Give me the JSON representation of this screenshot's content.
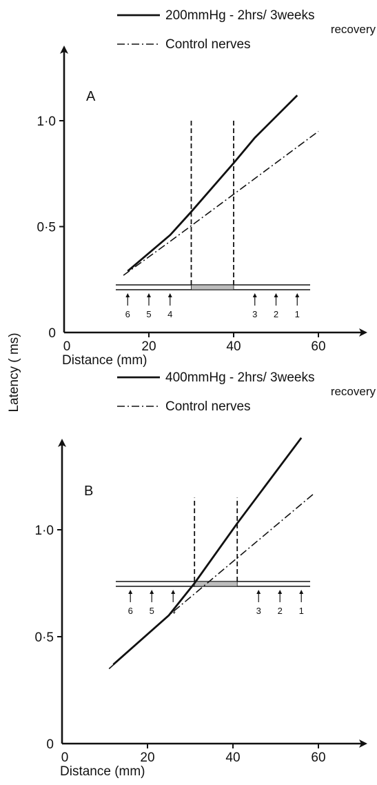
{
  "y_axis_label": "Latency ( ms)",
  "chart_data": [
    {
      "panel": "A",
      "type": "line",
      "xlabel": "Distance (mm)",
      "xlim": [
        0,
        70
      ],
      "ylim": [
        0,
        1.2
      ],
      "x_ticks": [
        0,
        20,
        40,
        60
      ],
      "y_ticks": [
        0,
        0.5,
        1.0
      ],
      "x_tick_labels": [
        "0",
        "20",
        "40",
        "60"
      ],
      "y_tick_labels": [
        "0",
        "0·5",
        "1·0"
      ],
      "legend": [
        {
          "style": "solid",
          "label": "200mmHg - 2hrs/ 3weeks",
          "sub": "recovery"
        },
        {
          "style": "dash-dot",
          "label": "Control nerves",
          "sub": ""
        }
      ],
      "series": [
        {
          "name": "200mmHg - 2hrs/ 3weeks recovery",
          "style": "solid",
          "x": [
            15,
            25,
            30,
            40,
            45,
            55
          ],
          "y": [
            0.29,
            0.46,
            0.57,
            0.8,
            0.92,
            1.12
          ]
        },
        {
          "name": "Control nerves",
          "style": "dash-dot",
          "x": [
            14,
            25,
            60
          ],
          "y": [
            0.27,
            0.43,
            0.95
          ]
        }
      ],
      "compression_zone": [
        30,
        40
      ],
      "electrodes": [
        {
          "label": "6",
          "x": 15
        },
        {
          "label": "5",
          "x": 20
        },
        {
          "label": "4",
          "x": 25
        },
        {
          "label": "3",
          "x": 45
        },
        {
          "label": "2",
          "x": 50
        },
        {
          "label": "1",
          "x": 55
        }
      ]
    },
    {
      "panel": "B",
      "type": "line",
      "xlabel": "Distance (mm)",
      "xlim": [
        0,
        70
      ],
      "ylim": [
        0,
        1.55
      ],
      "x_ticks": [
        0,
        20,
        40,
        60
      ],
      "y_ticks": [
        0,
        0.5,
        1.0
      ],
      "x_tick_labels": [
        "0",
        "20",
        "40",
        "60"
      ],
      "y_tick_labels": [
        "0",
        "0·5",
        "1·0"
      ],
      "legend": [
        {
          "style": "solid",
          "label": "400mmHg - 2hrs/ 3weeks",
          "sub": "recovery"
        },
        {
          "style": "dash-dot",
          "label": "Control nerves",
          "sub": ""
        }
      ],
      "series": [
        {
          "name": "400mmHg - 2hrs/ 3weeks recovery",
          "style": "solid",
          "x": [
            12,
            25,
            31,
            41,
            56
          ],
          "y": [
            0.37,
            0.6,
            0.75,
            1.03,
            1.43
          ]
        },
        {
          "name": "Control nerves",
          "style": "dash-dot",
          "x": [
            11,
            25,
            59
          ],
          "y": [
            0.35,
            0.6,
            1.17
          ]
        }
      ],
      "compression_zone": [
        31,
        41
      ],
      "electrodes": [
        {
          "label": "6",
          "x": 16
        },
        {
          "label": "5",
          "x": 21
        },
        {
          "label": "4",
          "x": 26
        },
        {
          "label": "3",
          "x": 46
        },
        {
          "label": "2",
          "x": 51
        },
        {
          "label": "1",
          "x": 56
        }
      ]
    }
  ]
}
